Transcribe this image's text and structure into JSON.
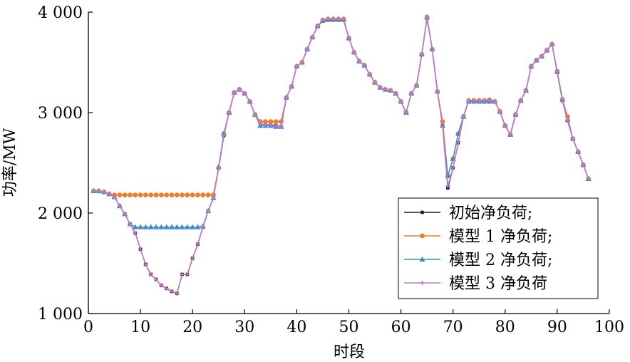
{
  "chart_data": {
    "type": "line",
    "title": "",
    "xlabel": "时段",
    "ylabel": "功率/MW",
    "xlim": [
      0,
      100
    ],
    "ylim": [
      1000,
      4000
    ],
    "xticks": [
      0,
      10,
      20,
      30,
      40,
      50,
      60,
      70,
      80,
      90,
      100
    ],
    "xtick_labels": [
      "0",
      "10",
      "20",
      "30",
      "40",
      "50",
      "60",
      "70",
      "80",
      "90",
      "100"
    ],
    "yticks": [
      1000,
      2000,
      3000,
      4000
    ],
    "ytick_labels": [
      "1 000",
      "2 000",
      "3 000",
      "4 000"
    ],
    "grid": false,
    "legend_position": "bottom-right",
    "x": [
      1,
      2,
      3,
      4,
      5,
      6,
      7,
      8,
      9,
      10,
      11,
      12,
      13,
      14,
      15,
      16,
      17,
      18,
      19,
      20,
      21,
      22,
      23,
      24,
      25,
      26,
      27,
      28,
      29,
      30,
      31,
      32,
      33,
      34,
      35,
      36,
      37,
      38,
      39,
      40,
      41,
      42,
      43,
      44,
      45,
      46,
      47,
      48,
      49,
      50,
      51,
      52,
      53,
      54,
      55,
      56,
      57,
      58,
      59,
      60,
      61,
      62,
      63,
      64,
      65,
      66,
      67,
      68,
      69,
      70,
      71,
      72,
      73,
      74,
      75,
      76,
      77,
      78,
      79,
      80,
      81,
      82,
      83,
      84,
      85,
      86,
      87,
      88,
      89,
      90,
      91,
      92,
      93,
      94,
      95,
      96
    ],
    "series": [
      {
        "name": "初始净负荷;",
        "color": "#222222",
        "marker": "square",
        "values": [
          2220,
          2220,
          2210,
          2190,
          2160,
          2070,
          1990,
          1890,
          1800,
          1640,
          1490,
          1390,
          1340,
          1280,
          1250,
          1220,
          1200,
          1390,
          1390,
          1550,
          1690,
          1860,
          2020,
          2150,
          2450,
          2770,
          3000,
          3200,
          3230,
          3190,
          3110,
          2980,
          2890,
          2880,
          2880,
          2870,
          2860,
          3150,
          3260,
          3460,
          3500,
          3630,
          3750,
          3860,
          3910,
          3920,
          3920,
          3920,
          3920,
          3740,
          3600,
          3510,
          3470,
          3380,
          3300,
          3250,
          3230,
          3220,
          3190,
          3110,
          3000,
          3190,
          3270,
          3580,
          3940,
          3630,
          3210,
          2870,
          2250,
          2450,
          2700,
          2960,
          3120,
          3120,
          3120,
          3120,
          3130,
          3110,
          3010,
          2870,
          2780,
          2980,
          3120,
          3220,
          3460,
          3520,
          3560,
          3620,
          3680,
          3400,
          3120,
          2920,
          2740,
          2610,
          2480,
          2340
        ]
      },
      {
        "name": "模型 1 净负荷;",
        "color": "#ee7c30",
        "marker": "circle",
        "values": [
          2220,
          2220,
          2210,
          2190,
          2180,
          2180,
          2180,
          2180,
          2180,
          2180,
          2180,
          2180,
          2180,
          2180,
          2180,
          2180,
          2180,
          2180,
          2180,
          2180,
          2180,
          2180,
          2180,
          2180,
          2450,
          2790,
          3000,
          3200,
          3230,
          3190,
          3110,
          2980,
          2910,
          2910,
          2910,
          2910,
          2910,
          3150,
          3260,
          3460,
          3500,
          3630,
          3750,
          3860,
          3920,
          3930,
          3930,
          3930,
          3930,
          3740,
          3600,
          3510,
          3470,
          3380,
          3300,
          3250,
          3230,
          3220,
          3190,
          3110,
          3000,
          3190,
          3270,
          3580,
          3950,
          3630,
          3210,
          2910,
          2370,
          2540,
          2790,
          2960,
          3120,
          3120,
          3120,
          3120,
          3120,
          3110,
          3010,
          2870,
          2780,
          2980,
          3120,
          3220,
          3460,
          3520,
          3560,
          3620,
          3680,
          3410,
          3130,
          2960,
          2740,
          2610,
          2480,
          2340
        ]
      },
      {
        "name": "模型 2 净负荷;",
        "color": "#3b8dc8",
        "marker": "triangle",
        "values": [
          2220,
          2220,
          2210,
          2190,
          2160,
          2070,
          1990,
          1890,
          1860,
          1860,
          1860,
          1860,
          1860,
          1860,
          1860,
          1860,
          1860,
          1860,
          1860,
          1860,
          1860,
          1870,
          2020,
          2150,
          2460,
          2790,
          3000,
          3200,
          3230,
          3190,
          3110,
          2980,
          2870,
          2870,
          2870,
          2860,
          2860,
          3150,
          3260,
          3460,
          3500,
          3630,
          3750,
          3860,
          3920,
          3930,
          3930,
          3930,
          3930,
          3740,
          3600,
          3510,
          3470,
          3380,
          3300,
          3250,
          3230,
          3220,
          3190,
          3110,
          3000,
          3190,
          3270,
          3580,
          3950,
          3630,
          3210,
          2870,
          2370,
          2540,
          2790,
          2960,
          3110,
          3110,
          3110,
          3110,
          3110,
          3110,
          3010,
          2870,
          2780,
          2980,
          3120,
          3220,
          3460,
          3520,
          3560,
          3620,
          3680,
          3410,
          3130,
          2930,
          2740,
          2610,
          2480,
          2340
        ]
      },
      {
        "name": "模型 3 净负荷",
        "color": "#c27bbf",
        "marker": "plus",
        "values": [
          2220,
          2220,
          2210,
          2190,
          2160,
          2070,
          1990,
          1890,
          1800,
          1640,
          1490,
          1390,
          1340,
          1280,
          1250,
          1220,
          1200,
          1390,
          1390,
          1550,
          1690,
          1860,
          2020,
          2150,
          2450,
          2770,
          3000,
          3200,
          3230,
          3190,
          3110,
          2980,
          2890,
          2880,
          2880,
          2870,
          2860,
          3150,
          3260,
          3460,
          3500,
          3630,
          3750,
          3860,
          3920,
          3930,
          3930,
          3930,
          3930,
          3740,
          3600,
          3510,
          3470,
          3380,
          3300,
          3250,
          3230,
          3220,
          3190,
          3110,
          3000,
          3190,
          3270,
          3580,
          3950,
          3630,
          3210,
          2870,
          2270,
          2450,
          2700,
          2960,
          3120,
          3120,
          3120,
          3120,
          3120,
          3110,
          3010,
          2870,
          2780,
          2980,
          3120,
          3220,
          3460,
          3520,
          3560,
          3620,
          3680,
          3410,
          3130,
          2930,
          2740,
          2610,
          2480,
          2340
        ]
      }
    ]
  }
}
